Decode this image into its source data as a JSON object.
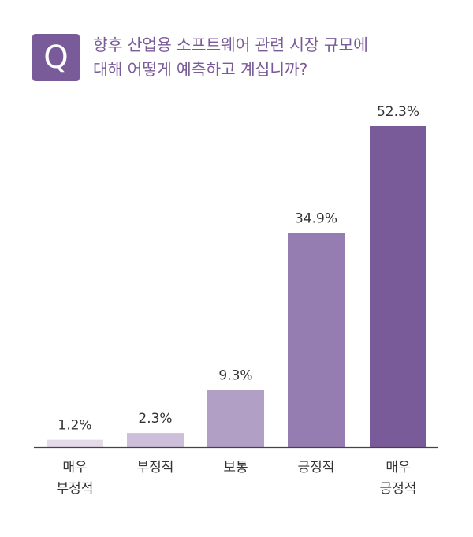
{
  "question": {
    "badge": "Q",
    "lines": [
      "향후 산업용 소프트웨어 관련 시장 규모에",
      "대해 어떻게 예측하고 계십니까?"
    ]
  },
  "colors": {
    "badge": "#7a5b99",
    "title_text": "#7a5b99",
    "axis": "#444444",
    "value_label": "#333333",
    "category_label": "#333333",
    "bars": [
      "#e3dbe9",
      "#cdbfd9",
      "#b29fc6",
      "#967db1",
      "#7a5b99"
    ]
  },
  "chart_data": {
    "type": "bar",
    "categories": [
      [
        "매우",
        "부정적"
      ],
      [
        "부정적"
      ],
      [
        "보통"
      ],
      [
        "긍정적"
      ],
      [
        "매우",
        "긍정적"
      ]
    ],
    "values": [
      1.2,
      2.3,
      9.3,
      34.9,
      52.3
    ],
    "value_labels": [
      "1.2%",
      "2.3%",
      "9.3%",
      "34.9%",
      "52.3%"
    ],
    "title": "",
    "xlabel": "",
    "ylabel": "",
    "ylim": [
      0,
      52.3
    ],
    "grid": false,
    "legend": "none"
  }
}
